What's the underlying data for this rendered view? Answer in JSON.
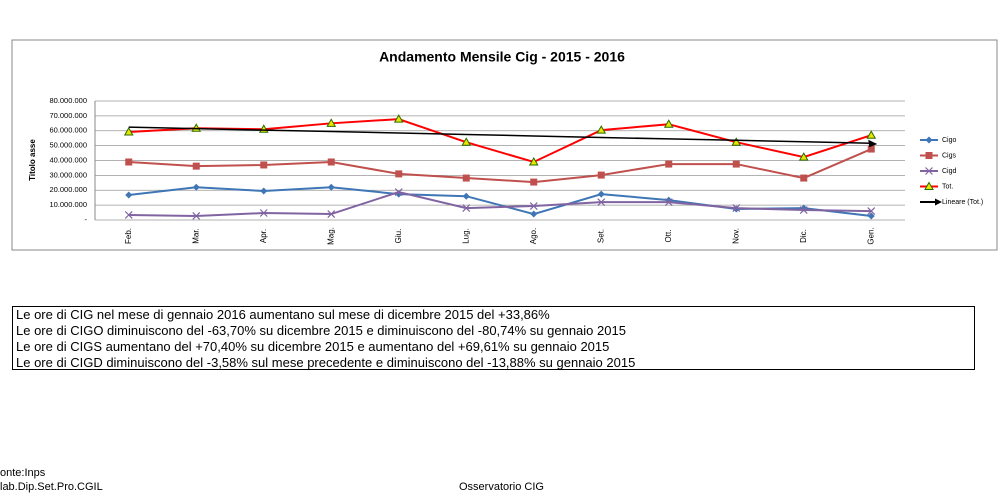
{
  "chart_data": {
    "type": "line",
    "title": "Andamento Mensile Cig - 2015 - 2016",
    "ylabel": "Titolo asse",
    "categories": [
      "Feb.",
      "Mar.",
      "Apr.",
      "Mag.",
      "Giu.",
      "Lug.",
      "Ago.",
      "Set.",
      "Ott.",
      "Nov.",
      "Dic.",
      "Gen."
    ],
    "series": [
      {
        "name": "Cigo",
        "color": "#3f76b5",
        "marker": "diamond",
        "values": [
          16800000,
          22000000,
          19500000,
          22000000,
          17400000,
          16000000,
          4000000,
          17400000,
          13400000,
          7400000,
          8000000,
          2700000
        ]
      },
      {
        "name": "Cigs",
        "color": "#c0504d",
        "marker": "square",
        "values": [
          39000000,
          36200000,
          37000000,
          39000000,
          31000000,
          28200000,
          25500000,
          30200000,
          37600000,
          37600000,
          28200000,
          47700000
        ]
      },
      {
        "name": "Cigd",
        "color": "#8064a2",
        "marker": "x",
        "values": [
          3400000,
          2700000,
          4700000,
          4000000,
          18800000,
          8000000,
          9400000,
          12000000,
          12000000,
          8000000,
          6700000,
          6000000
        ]
      },
      {
        "name": "Tot.",
        "color": "#ff0000",
        "marker": "triangle",
        "values": [
          59200000,
          61700000,
          61000000,
          65000000,
          67800000,
          52300000,
          39000000,
          60400000,
          64400000,
          52300000,
          42300000,
          57000000
        ]
      },
      {
        "name": "Lineare (Tot.)",
        "color": "#000000",
        "marker": "arrow",
        "values": [
          62400000,
          61400000,
          60400000,
          59500000,
          58500000,
          57500000,
          56500000,
          55500000,
          54500000,
          53600000,
          52600000,
          51600000
        ]
      }
    ],
    "ylim": [
      0,
      80000000
    ],
    "yticks": [
      {
        "value": 0,
        "label": "-"
      },
      {
        "value": 10000000,
        "label": "10.000.000"
      },
      {
        "value": 20000000,
        "label": "20.000.000"
      },
      {
        "value": 30000000,
        "label": "30.000.000"
      },
      {
        "value": 40000000,
        "label": "40.000.000"
      },
      {
        "value": 50000000,
        "label": "50.000.000"
      },
      {
        "value": 60000000,
        "label": "60.000.000"
      },
      {
        "value": 70000000,
        "label": "70.000.000"
      },
      {
        "value": 80000000,
        "label": "80.000.000"
      }
    ],
    "grid": true,
    "legend": "right"
  },
  "notes": [
    "Le ore di CIG nel mese di gennaio 2016 aumentano sul mese di dicembre 2015 del +33,86%",
    "Le ore di CIGO diminuiscono del -63,70% su dicembre 2015 e diminuiscono del -80,74% su gennaio 2015",
    "Le ore di CIGS aumentano del +70,40% su dicembre 2015 e aumentano del +69,61% su gennaio 2015",
    "Le ore di CIGD diminuiscono del -3,58% sul mese precedente e diminuiscono del -13,88% su gennaio 2015"
  ],
  "footer": {
    "source": "onte:Inps",
    "elab": "lab.Dip.Set.Pro.CGIL",
    "center": "Osservatorio CIG"
  }
}
